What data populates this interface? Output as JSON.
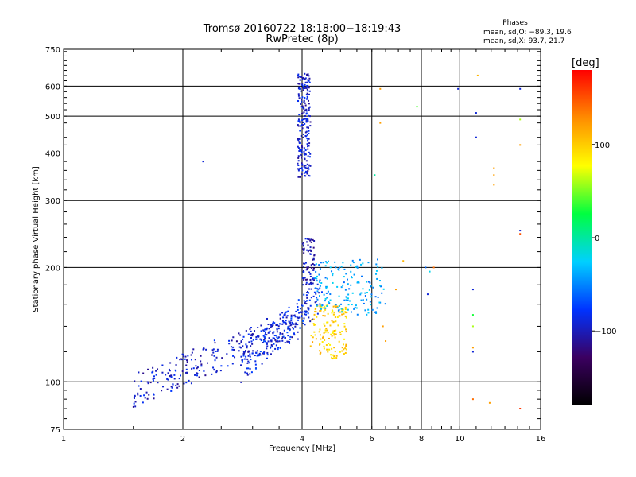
{
  "chart_data": {
    "type": "scatter",
    "title": "Tromsø 20160722 18:18:00−18:19:43",
    "subtitle": "RwPretec (8p)",
    "xlabel": "Frequency [MHz]",
    "ylabel": "Stationary phase Virtual Height [km]",
    "x_scale": "log",
    "y_scale": "log",
    "xlim": [
      1,
      16
    ],
    "ylim": [
      75,
      750
    ],
    "x_ticks": [
      1,
      2,
      4,
      6,
      8,
      10,
      16
    ],
    "x_tick_labels": [
      "1",
      "2",
      "4",
      "6",
      "8",
      "10",
      "16"
    ],
    "y_ticks": [
      75,
      100,
      200,
      300,
      400,
      500,
      600,
      750
    ],
    "y_tick_labels": [
      "75",
      "100",
      "200",
      "300",
      "400",
      "500",
      "600",
      "750"
    ],
    "grid": true,
    "legend": {
      "title": "Phases",
      "lines": [
        "mean, sd,O: −89.3, 19.6",
        "mean, sd,X:  93.7, 21.7"
      ],
      "placement": "top-right"
    },
    "colorbar": {
      "label": "[deg]",
      "range": [
        -180,
        180
      ],
      "ticks": [
        -100,
        0,
        100
      ],
      "tick_labels": [
        "−100",
        "0",
        "100"
      ],
      "colors": [
        "#000000",
        "#3b0060",
        "#0033ff",
        "#00d0ff",
        "#00ff40",
        "#ffff00",
        "#ff8c00",
        "#ff0000"
      ]
    },
    "point_groups": [
      {
        "name": "o-mode-low",
        "phase": -95,
        "x_range": [
          1.5,
          4.0
        ],
        "y_range": [
          95,
          160
        ],
        "n": 280
      },
      {
        "name": "o-mode-lower-layer",
        "phase": -85,
        "x_range": [
          2.8,
          4.5
        ],
        "y_range": [
          110,
          190
        ],
        "n": 220
      },
      {
        "name": "o-mode-F-ridge",
        "phase": -100,
        "x_range": [
          4.0,
          4.3
        ],
        "y_range": [
          180,
          240
        ],
        "n": 80
      },
      {
        "name": "o-mode-high-F",
        "phase": -95,
        "x_range": [
          3.9,
          4.2
        ],
        "y_range": [
          345,
          650
        ],
        "n": 220
      },
      {
        "name": "x-mode-cluster",
        "phase": 100,
        "x_range": [
          4.2,
          5.2
        ],
        "y_range": [
          115,
          160
        ],
        "n": 150
      },
      {
        "name": "mixed-F",
        "phase": -40,
        "x_range": [
          4.3,
          6.5
        ],
        "y_range": [
          150,
          210
        ],
        "n": 160
      }
    ],
    "scattered_points": [
      {
        "x": 2.25,
        "y": 380,
        "phase": -90
      },
      {
        "x": 6.3,
        "y": 590,
        "phase": 120
      },
      {
        "x": 6.3,
        "y": 480,
        "phase": 120
      },
      {
        "x": 7.8,
        "y": 530,
        "phase": 40
      },
      {
        "x": 9.9,
        "y": 590,
        "phase": -90
      },
      {
        "x": 11.0,
        "y": 510,
        "phase": -90
      },
      {
        "x": 11.0,
        "y": 440,
        "phase": -90
      },
      {
        "x": 11.1,
        "y": 640,
        "phase": 110
      },
      {
        "x": 12.2,
        "y": 365,
        "phase": 120
      },
      {
        "x": 12.2,
        "y": 350,
        "phase": 120
      },
      {
        "x": 12.2,
        "y": 330,
        "phase": 120
      },
      {
        "x": 14.2,
        "y": 590,
        "phase": -90
      },
      {
        "x": 14.2,
        "y": 490,
        "phase": 60
      },
      {
        "x": 14.2,
        "y": 420,
        "phase": 120
      },
      {
        "x": 14.2,
        "y": 250,
        "phase": -90
      },
      {
        "x": 14.2,
        "y": 245,
        "phase": 150
      },
      {
        "x": 10.8,
        "y": 175,
        "phase": -90
      },
      {
        "x": 10.8,
        "y": 150,
        "phase": 30
      },
      {
        "x": 10.8,
        "y": 140,
        "phase": 60
      },
      {
        "x": 10.8,
        "y": 123,
        "phase": 120
      },
      {
        "x": 10.8,
        "y": 120,
        "phase": -90
      },
      {
        "x": 10.8,
        "y": 90,
        "phase": 140
      },
      {
        "x": 11.9,
        "y": 88,
        "phase": 120
      },
      {
        "x": 14.2,
        "y": 85,
        "phase": 160
      },
      {
        "x": 8.2,
        "y": 200,
        "phase": -60
      },
      {
        "x": 8.4,
        "y": 195,
        "phase": -20
      },
      {
        "x": 8.6,
        "y": 200,
        "phase": 140
      },
      {
        "x": 8.3,
        "y": 170,
        "phase": -90
      },
      {
        "x": 6.1,
        "y": 350,
        "phase": 0
      },
      {
        "x": 7.2,
        "y": 208,
        "phase": 110
      },
      {
        "x": 6.9,
        "y": 175,
        "phase": 120
      },
      {
        "x": 6.4,
        "y": 140,
        "phase": 120
      },
      {
        "x": 6.5,
        "y": 128,
        "phase": 120
      }
    ]
  }
}
